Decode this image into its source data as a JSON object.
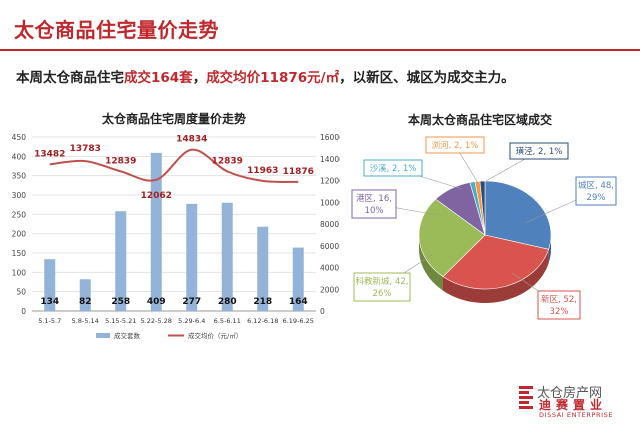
{
  "header": {
    "title": "太仓商品住宅量价走势",
    "summary_prefix": "本周太仓商品住宅",
    "summary_volume": "成交164套",
    "summary_sep": "，",
    "summary_price": "成交均价11876元/㎡",
    "summary_suffix": "，以新区、城区为成交主力。"
  },
  "colors": {
    "accent": "#c0282d",
    "bar": "#93b3d9",
    "line": "#c0504d",
    "pie": {
      "城区": "#4f81bd",
      "新区": "#d9534f",
      "科教新城": "#9bbb59",
      "港区": "#8064a2",
      "沙溪": "#4bacc6",
      "浏河": "#f79646",
      "璜泾": "#2c4d75"
    }
  },
  "chart_data": [
    {
      "type": "bar",
      "title": "太仓商品住宅周度量价走势",
      "categories": [
        "5.1-5.7",
        "5.8-5.14",
        "5.15-5.21",
        "5.22-5.28",
        "5.29-6.4",
        "6.5-6.11",
        "6.12-6.18",
        "6.19-6.25"
      ],
      "ylim": [
        0,
        450
      ],
      "yticks": [
        "0",
        "50",
        "100",
        "150",
        "200",
        "250",
        "300",
        "350",
        "400",
        "450"
      ],
      "y2lim": [
        0,
        16000
      ],
      "y2ticks": [
        "0",
        "2000",
        "4000",
        "6000",
        "8000",
        "10000",
        "12000",
        "14000",
        "16000"
      ],
      "grid": true,
      "legend_position": "bottom",
      "series": [
        {
          "name": "成交套数",
          "type": "bar",
          "axis": "left",
          "values": [
            134,
            82,
            258,
            409,
            277,
            280,
            218,
            164
          ]
        },
        {
          "name": "成交均价（元/㎡）",
          "type": "line",
          "axis": "right",
          "values": [
            13482,
            13783,
            12839,
            12062,
            14834,
            12839,
            11963,
            11876
          ]
        }
      ]
    },
    {
      "type": "pie",
      "title": "本周太仓商品住宅区域成交",
      "slices": [
        {
          "label": "城区",
          "value": 48,
          "pct": "29%"
        },
        {
          "label": "新区",
          "value": 52,
          "pct": "32%"
        },
        {
          "label": "科教新城",
          "value": 42,
          "pct": "26%"
        },
        {
          "label": "港区",
          "value": 16,
          "pct": "10%"
        },
        {
          "label": "沙溪",
          "value": 2,
          "pct": "1%"
        },
        {
          "label": "浏河",
          "value": 2,
          "pct": "1%"
        },
        {
          "label": "璜泾",
          "value": 2,
          "pct": "1%"
        }
      ]
    }
  ],
  "logo": {
    "brand_cn": "迪赛置业",
    "brand_en": "DISSAI ENTERPRISE",
    "watermark": "太仓房产网"
  }
}
